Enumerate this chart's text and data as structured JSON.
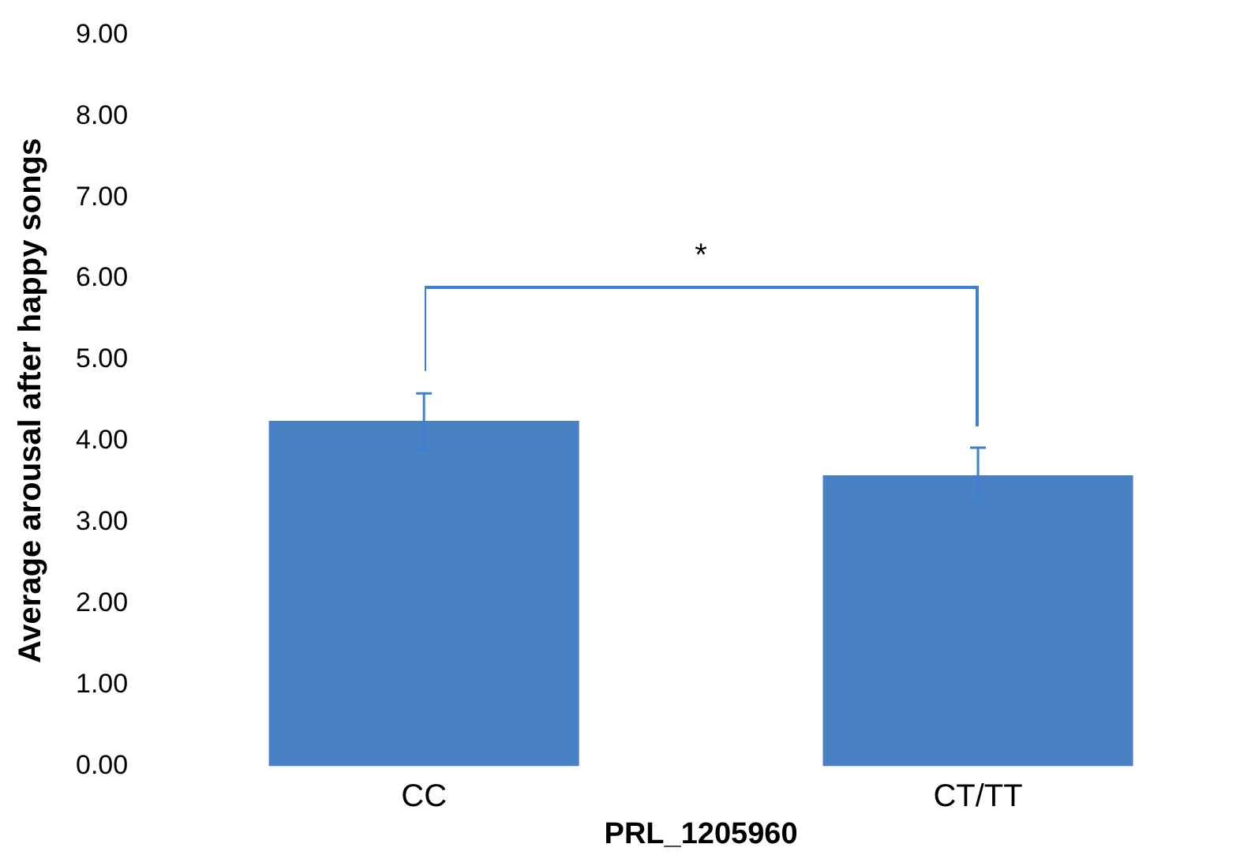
{
  "chart_data": {
    "type": "bar",
    "xlabel": "PRL_1205960",
    "ylabel": "Average arousal after happy songs",
    "categories": [
      "CC",
      "CT/TT"
    ],
    "values": [
      4.25,
      3.58
    ],
    "errors": [
      0.34,
      0.34
    ],
    "color": "#4a80c4",
    "ylim": [
      0,
      9
    ],
    "yticks": [
      {
        "value": 0,
        "label": "0.00"
      },
      {
        "value": 1,
        "label": "1.00"
      },
      {
        "value": 2,
        "label": "2.00"
      },
      {
        "value": 3,
        "label": "3.00"
      },
      {
        "value": 4,
        "label": "4.00"
      },
      {
        "value": 5,
        "label": "5.00"
      },
      {
        "value": 6,
        "label": "6.00"
      },
      {
        "value": 7,
        "label": "7.00"
      },
      {
        "value": 8,
        "label": "8.00"
      },
      {
        "value": 9,
        "label": "9.00"
      }
    ],
    "grid": false,
    "legend": false,
    "annotations": [
      "*"
    ]
  }
}
